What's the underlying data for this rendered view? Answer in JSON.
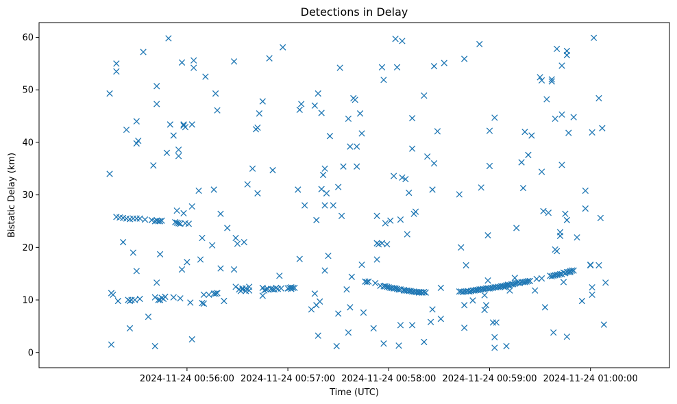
{
  "chart_data": {
    "type": "scatter",
    "title": "Detections in Delay",
    "xlabel": "Time (UTC)",
    "ylabel": "Bistatic Delay (km)",
    "marker": "x",
    "color": "#1f77b4",
    "xlim_seconds": [
      -88,
      287
    ],
    "ylim": [
      -2.9,
      62.8
    ],
    "xticks": [
      {
        "value": 0,
        "label": "2024-11-24 00:56:00"
      },
      {
        "value": 60,
        "label": "2024-11-24 00:57:00"
      },
      {
        "value": 120,
        "label": "2024-11-24 00:58:00"
      },
      {
        "value": 180,
        "label": "2024-11-24 00:59:00"
      },
      {
        "value": 240,
        "label": "2024-11-24 01:00:00"
      }
    ],
    "yticks": [
      0,
      10,
      20,
      30,
      40,
      50,
      60
    ],
    "x_units": "seconds from 2024-11-24 00:56:00 UTC",
    "points": [
      [
        -45,
        1.5
      ],
      [
        -46,
        34
      ],
      [
        -46,
        49.3
      ],
      [
        -44,
        11
      ],
      [
        -45,
        11.3
      ],
      [
        -42,
        55
      ],
      [
        -42,
        53.5
      ],
      [
        -42,
        25.8
      ],
      [
        -40,
        25.7
      ],
      [
        -38,
        25.6
      ],
      [
        -36,
        25.5
      ],
      [
        -34,
        25.4
      ],
      [
        -32,
        25.5
      ],
      [
        -30,
        25.5
      ],
      [
        -28,
        25.5
      ],
      [
        -41,
        9.8
      ],
      [
        -38,
        21
      ],
      [
        -36,
        42.4
      ],
      [
        -35,
        10
      ],
      [
        -34,
        9.8
      ],
      [
        -33,
        10
      ],
      [
        -31,
        10
      ],
      [
        -34,
        4.6
      ],
      [
        -32,
        19
      ],
      [
        -30,
        15.5
      ],
      [
        -30,
        39.8
      ],
      [
        -29,
        40.3
      ],
      [
        -30,
        44
      ],
      [
        -28,
        10.2
      ],
      [
        -26,
        57.2
      ],
      [
        -25,
        25.3
      ],
      [
        -23,
        6.8
      ],
      [
        -21,
        25.2
      ],
      [
        -19,
        25
      ],
      [
        -18,
        25.1
      ],
      [
        -17,
        25
      ],
      [
        -16,
        25
      ],
      [
        -15,
        25.1
      ],
      [
        -20,
        35.6
      ],
      [
        -19,
        1.2
      ],
      [
        -19,
        10.5
      ],
      [
        -18,
        13.3
      ],
      [
        -18,
        47.3
      ],
      [
        -18,
        50.7
      ],
      [
        -17,
        10
      ],
      [
        -16,
        10
      ],
      [
        -16,
        18.7
      ],
      [
        -14,
        10.2
      ],
      [
        -13,
        10.6
      ],
      [
        -15,
        10.4
      ],
      [
        -12,
        38
      ],
      [
        -11,
        59.8
      ],
      [
        -10,
        43.4
      ],
      [
        -8,
        41.3
      ],
      [
        -8,
        10.5
      ],
      [
        -7,
        24.8
      ],
      [
        -6,
        24.7
      ],
      [
        -5,
        24.6
      ],
      [
        -4,
        24.5
      ],
      [
        -6,
        27
      ],
      [
        -5,
        38.6
      ],
      [
        -5,
        37.4
      ],
      [
        -4,
        10.3
      ],
      [
        -3,
        55.2
      ],
      [
        -3,
        15.8
      ],
      [
        -2,
        26.5
      ],
      [
        -2,
        43.2
      ],
      [
        -2,
        43.4
      ],
      [
        -1,
        24.6
      ],
      [
        -1,
        42.9
      ],
      [
        0,
        17.2
      ],
      [
        1,
        24.5
      ],
      [
        2,
        9.5
      ],
      [
        3,
        2.5
      ],
      [
        3,
        27.8
      ],
      [
        3,
        43.4
      ],
      [
        4,
        54.2
      ],
      [
        4,
        55.6
      ],
      [
        7,
        30.8
      ],
      [
        8,
        17.7
      ],
      [
        9,
        21.8
      ],
      [
        9,
        9.4
      ],
      [
        10,
        9.3
      ],
      [
        10,
        11
      ],
      [
        11,
        52.5
      ],
      [
        13,
        11
      ],
      [
        15,
        20.4
      ],
      [
        16,
        31
      ],
      [
        16,
        11.2
      ],
      [
        17,
        49.3
      ],
      [
        17,
        11.2
      ],
      [
        18,
        11.3
      ],
      [
        18,
        46.1
      ],
      [
        20,
        16
      ],
      [
        20,
        26.4
      ],
      [
        22,
        9.8
      ],
      [
        24,
        23.7
      ],
      [
        28,
        55.4
      ],
      [
        28,
        15.8
      ],
      [
        29,
        21.8
      ],
      [
        29,
        12.5
      ],
      [
        30,
        20.7
      ],
      [
        31,
        12
      ],
      [
        32,
        11.7
      ],
      [
        33,
        12
      ],
      [
        33,
        12.2
      ],
      [
        34,
        21
      ],
      [
        35,
        11.7
      ],
      [
        35,
        12.2
      ],
      [
        36,
        32
      ],
      [
        37,
        11.8
      ],
      [
        37,
        12.5
      ],
      [
        39,
        35
      ],
      [
        41,
        42.5
      ],
      [
        42,
        42.8
      ],
      [
        42,
        30.3
      ],
      [
        43,
        45.5
      ],
      [
        45,
        47.8
      ],
      [
        45,
        10.8
      ],
      [
        45,
        12.3
      ],
      [
        46,
        11.8
      ],
      [
        47,
        12
      ],
      [
        48,
        12.1
      ],
      [
        49,
        56
      ],
      [
        50,
        12.1
      ],
      [
        51,
        34.7
      ],
      [
        51,
        12
      ],
      [
        52,
        12
      ],
      [
        53,
        12.3
      ],
      [
        54,
        12.1
      ],
      [
        55,
        14.6
      ],
      [
        56,
        12.2
      ],
      [
        57,
        58.1
      ],
      [
        60,
        12.2
      ],
      [
        61,
        12.3
      ],
      [
        62,
        12.4
      ],
      [
        62,
        12.1
      ],
      [
        63,
        12.3
      ],
      [
        64,
        12.3
      ],
      [
        66,
        31
      ],
      [
        67,
        17.8
      ],
      [
        67,
        46.2
      ],
      [
        68,
        47.3
      ],
      [
        70,
        28
      ],
      [
        74,
        8.2
      ],
      [
        76,
        47
      ],
      [
        76,
        11.2
      ],
      [
        77,
        25.2
      ],
      [
        77,
        9
      ],
      [
        78,
        3.2
      ],
      [
        78,
        49.3
      ],
      [
        79,
        9.7
      ],
      [
        80,
        31.1
      ],
      [
        80,
        45.6
      ],
      [
        81,
        33.8
      ],
      [
        82,
        35
      ],
      [
        82,
        15.6
      ],
      [
        82,
        28
      ],
      [
        83,
        30.3
      ],
      [
        84,
        18.4
      ],
      [
        85,
        41.2
      ],
      [
        87,
        28
      ],
      [
        89,
        1.2
      ],
      [
        90,
        7.4
      ],
      [
        90,
        31.5
      ],
      [
        91,
        54.2
      ],
      [
        92,
        26
      ],
      [
        93,
        35.4
      ],
      [
        95,
        12
      ],
      [
        96,
        3.8
      ],
      [
        96,
        44.5
      ],
      [
        97,
        39.2
      ],
      [
        97,
        8.6
      ],
      [
        98,
        14.4
      ],
      [
        99,
        48.4
      ],
      [
        100,
        48.1
      ],
      [
        101,
        39.2
      ],
      [
        101,
        35.4
      ],
      [
        103,
        45.5
      ],
      [
        104,
        16.7
      ],
      [
        104,
        41.7
      ],
      [
        105,
        7.6
      ],
      [
        106,
        13.5
      ],
      [
        107,
        13.4
      ],
      [
        108,
        13.5
      ],
      [
        111,
        4.6
      ],
      [
        112,
        13.2
      ],
      [
        113,
        26
      ],
      [
        113,
        20.8
      ],
      [
        113,
        17.7
      ],
      [
        114,
        20.6
      ],
      [
        115,
        12.7
      ],
      [
        116,
        20.8
      ],
      [
        116,
        54.3
      ],
      [
        117,
        51.9
      ],
      [
        117,
        12.6
      ],
      [
        117,
        1.7
      ],
      [
        118,
        24.6
      ],
      [
        118,
        12.6
      ],
      [
        119,
        12.5
      ],
      [
        119,
        20.6
      ],
      [
        120,
        12.4
      ],
      [
        121,
        12.3
      ],
      [
        121,
        25.1
      ],
      [
        122,
        12.3
      ],
      [
        123,
        12.2
      ],
      [
        123,
        33.6
      ],
      [
        124,
        59.7
      ],
      [
        124,
        12.2
      ],
      [
        125,
        54.3
      ],
      [
        125,
        12.1
      ],
      [
        126,
        12
      ],
      [
        126,
        1.3
      ],
      [
        127,
        25.3
      ],
      [
        127,
        12
      ],
      [
        127,
        5.2
      ],
      [
        128,
        33.3
      ],
      [
        128,
        59.3
      ],
      [
        129,
        11.9
      ],
      [
        129,
        11.8
      ],
      [
        130,
        11.8
      ],
      [
        130,
        33
      ],
      [
        131,
        11.8
      ],
      [
        131,
        22.5
      ],
      [
        132,
        11.7
      ],
      [
        132,
        30.4
      ],
      [
        133,
        11.7
      ],
      [
        133,
        11.7
      ],
      [
        134,
        11.6
      ],
      [
        134,
        5.2
      ],
      [
        134,
        38.8
      ],
      [
        134,
        44.6
      ],
      [
        135,
        11.6
      ],
      [
        135,
        26.4
      ],
      [
        136,
        11.5
      ],
      [
        136,
        26.8
      ],
      [
        137,
        11.5
      ],
      [
        138,
        11.5
      ],
      [
        138,
        11.4
      ],
      [
        139,
        11.5
      ],
      [
        139,
        11.5
      ],
      [
        140,
        11.4
      ],
      [
        141,
        11.5
      ],
      [
        141,
        2
      ],
      [
        141,
        48.9
      ],
      [
        142,
        11.4
      ],
      [
        143,
        37.3
      ],
      [
        145,
        5.8
      ],
      [
        146,
        8.2
      ],
      [
        146,
        31
      ],
      [
        147,
        36
      ],
      [
        147,
        54.5
      ],
      [
        149,
        42.1
      ],
      [
        151,
        12.3
      ],
      [
        151,
        6.4
      ],
      [
        153,
        55.1
      ],
      [
        162,
        30.1
      ],
      [
        162,
        11.6
      ],
      [
        163,
        20
      ],
      [
        163,
        11.6
      ],
      [
        164,
        11.5
      ],
      [
        165,
        11.6
      ],
      [
        165,
        9
      ],
      [
        165,
        4.7
      ],
      [
        165,
        55.9
      ],
      [
        166,
        11.6
      ],
      [
        166,
        16.6
      ],
      [
        167,
        11.7
      ],
      [
        168,
        11.6
      ],
      [
        169,
        11.7
      ],
      [
        169,
        11.7
      ],
      [
        170,
        11.8
      ],
      [
        170,
        9.9
      ],
      [
        171,
        11.8
      ],
      [
        172,
        11.9
      ],
      [
        172,
        11.9
      ],
      [
        173,
        11.9
      ],
      [
        173,
        11.9
      ],
      [
        174,
        12
      ],
      [
        174,
        58.7
      ],
      [
        175,
        31.4
      ],
      [
        175,
        12
      ],
      [
        176,
        12.1
      ],
      [
        177,
        12.1
      ],
      [
        177,
        10.9
      ],
      [
        177,
        8.1
      ],
      [
        178,
        12.2
      ],
      [
        178,
        9
      ],
      [
        179,
        12.2
      ],
      [
        179,
        13.7
      ],
      [
        179,
        22.3
      ],
      [
        180,
        12.2
      ],
      [
        180,
        35.5
      ],
      [
        180,
        42.2
      ],
      [
        181,
        12.3
      ],
      [
        182,
        12.3
      ],
      [
        182,
        5.7
      ],
      [
        183,
        12.4
      ],
      [
        183,
        44.7
      ],
      [
        183,
        0.9
      ],
      [
        183,
        2.9
      ],
      [
        184,
        12.4
      ],
      [
        184,
        5.7
      ],
      [
        185,
        12.5
      ],
      [
        186,
        12.5
      ],
      [
        187,
        12.6
      ],
      [
        187,
        12.6
      ],
      [
        188,
        12.6
      ],
      [
        189,
        12.7
      ],
      [
        189,
        12.4
      ],
      [
        190,
        12.8
      ],
      [
        190,
        1.2
      ],
      [
        191,
        12.8
      ],
      [
        191,
        12.9
      ],
      [
        192,
        12.8
      ],
      [
        192,
        11.8
      ],
      [
        193,
        13
      ],
      [
        194,
        13
      ],
      [
        195,
        13.1
      ],
      [
        195,
        14.2
      ],
      [
        196,
        13.2
      ],
      [
        196,
        23.7
      ],
      [
        197,
        13.3
      ],
      [
        198,
        13.2
      ],
      [
        199,
        13.4
      ],
      [
        199,
        36.2
      ],
      [
        200,
        13.4
      ],
      [
        200,
        31.3
      ],
      [
        201,
        13.4
      ],
      [
        201,
        42
      ],
      [
        202,
        13.5
      ],
      [
        203,
        13.6
      ],
      [
        203,
        37.6
      ],
      [
        204,
        13.6
      ],
      [
        205,
        41.3
      ],
      [
        207,
        11.8
      ],
      [
        208,
        14
      ],
      [
        210,
        52.4
      ],
      [
        211,
        51.8
      ],
      [
        211,
        34.4
      ],
      [
        211,
        14.1
      ],
      [
        212,
        26.9
      ],
      [
        213,
        8.6
      ],
      [
        214,
        48.2
      ],
      [
        215,
        26.6
      ],
      [
        216,
        14.6
      ],
      [
        217,
        14.5
      ],
      [
        217,
        52
      ],
      [
        217,
        51.6
      ],
      [
        218,
        14.6
      ],
      [
        218,
        3.8
      ],
      [
        219,
        14.7
      ],
      [
        219,
        19.6
      ],
      [
        219,
        44.5
      ],
      [
        220,
        14.8
      ],
      [
        220,
        19.3
      ],
      [
        220,
        57.8
      ],
      [
        221,
        14.8
      ],
      [
        222,
        14.9
      ],
      [
        222,
        22.9
      ],
      [
        222,
        22.2
      ],
      [
        223,
        14.9
      ],
      [
        223,
        35.7
      ],
      [
        223,
        45.3
      ],
      [
        223,
        54.6
      ],
      [
        224,
        15.2
      ],
      [
        224,
        13.4
      ],
      [
        225,
        15.1
      ],
      [
        225,
        26.4
      ],
      [
        226,
        15.3
      ],
      [
        226,
        25.2
      ],
      [
        226,
        56.6
      ],
      [
        226,
        57.4
      ],
      [
        226,
        3
      ],
      [
        227,
        15.3
      ],
      [
        227,
        41.8
      ],
      [
        228,
        15.3
      ],
      [
        228,
        15.5
      ],
      [
        229,
        15.6
      ],
      [
        230,
        15.6
      ],
      [
        230,
        44.8
      ],
      [
        232,
        21.9
      ],
      [
        235,
        9.8
      ],
      [
        237,
        30.8
      ],
      [
        237,
        27.4
      ],
      [
        240,
        16.6
      ],
      [
        240,
        16.7
      ],
      [
        241,
        41.9
      ],
      [
        241,
        11
      ],
      [
        241,
        12.4
      ],
      [
        242,
        59.9
      ],
      [
        245,
        16.6
      ],
      [
        245,
        48.4
      ],
      [
        246,
        25.6
      ],
      [
        247,
        42.7
      ],
      [
        248,
        5.3
      ],
      [
        249,
        13.3
      ]
    ]
  }
}
